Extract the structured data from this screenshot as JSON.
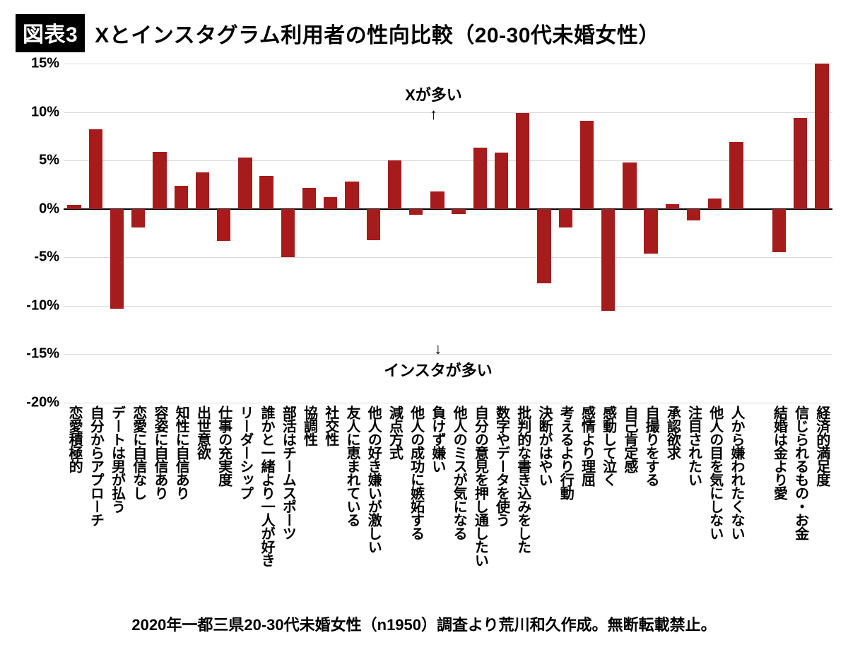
{
  "title_badge": "図表3",
  "title_text": "Xとインスタグラム利用者の性向比較（20-30代未婚女性）",
  "footer": "2020年一都三県20-30代未婚女性（n1950）調査より荒川和久作成。無断転載禁止。",
  "annotation_top": "Xが多い",
  "annotation_top_arrow": "↑",
  "annotation_bottom_arrow": "↓",
  "annotation_bottom": "インスタが多い",
  "chart": {
    "type": "bar",
    "bar_color": "#a61b1b",
    "background_color": "#ffffff",
    "grid_color": "#d9d9d9",
    "zero_line_color": "#000000",
    "ymin": -20,
    "ymax": 15,
    "ytick_step": 5,
    "ytick_suffix": "%",
    "yticks": [
      15,
      10,
      5,
      0,
      -5,
      -10,
      -15,
      -20
    ],
    "bar_width_ratio": 0.64,
    "gap_after_index": 33,
    "gap_bars": 1.0,
    "title_fontsize": 30,
    "tick_fontsize": 20,
    "label_fontsize": 20,
    "annot_fontsize": 22,
    "footer_fontsize": 22,
    "categories": [
      "恋愛積極的",
      "自分からアプローチ",
      "デートは男が払う",
      "恋愛に自信なし",
      "容姿に自信あり",
      "知性に自信あり",
      "出世意欲",
      "仕事の充実度",
      "リーダーシップ",
      "誰かと一緒より一人が好き",
      "部活はチームスポーツ",
      "協調性",
      "社交性",
      "友人に恵まれている",
      "他人の好き嫌いが激しい",
      "減点方式",
      "他人の成功に嫉妬する",
      "負けず嫌い",
      "他人のミスが気になる",
      "自分の意見を押し通したい",
      "数字やデータを使う",
      "批判的な書き込みをした",
      "決断がはやい",
      "考えるより行動",
      "感情より理屈",
      "感動して泣く",
      "自己肯定感",
      "自撮りをする",
      "承認欲求",
      "注目されたい",
      "他人の目を気にしない",
      "人から嫌われたくない",
      "結婚は金より愛",
      "信じられるもの・お金",
      "経済的満足度"
    ],
    "values": [
      0.4,
      8.2,
      -10.3,
      -1.9,
      5.9,
      2.4,
      3.8,
      -3.3,
      5.3,
      3.4,
      -5.0,
      2.2,
      1.2,
      2.8,
      -3.2,
      5.0,
      -0.6,
      1.8,
      -0.5,
      6.3,
      5.8,
      9.9,
      -7.7,
      -1.9,
      9.1,
      -10.5,
      4.8,
      -4.6,
      0.5,
      -1.2,
      1.1,
      6.9,
      -4.5,
      9.4,
      15.0
    ]
  }
}
